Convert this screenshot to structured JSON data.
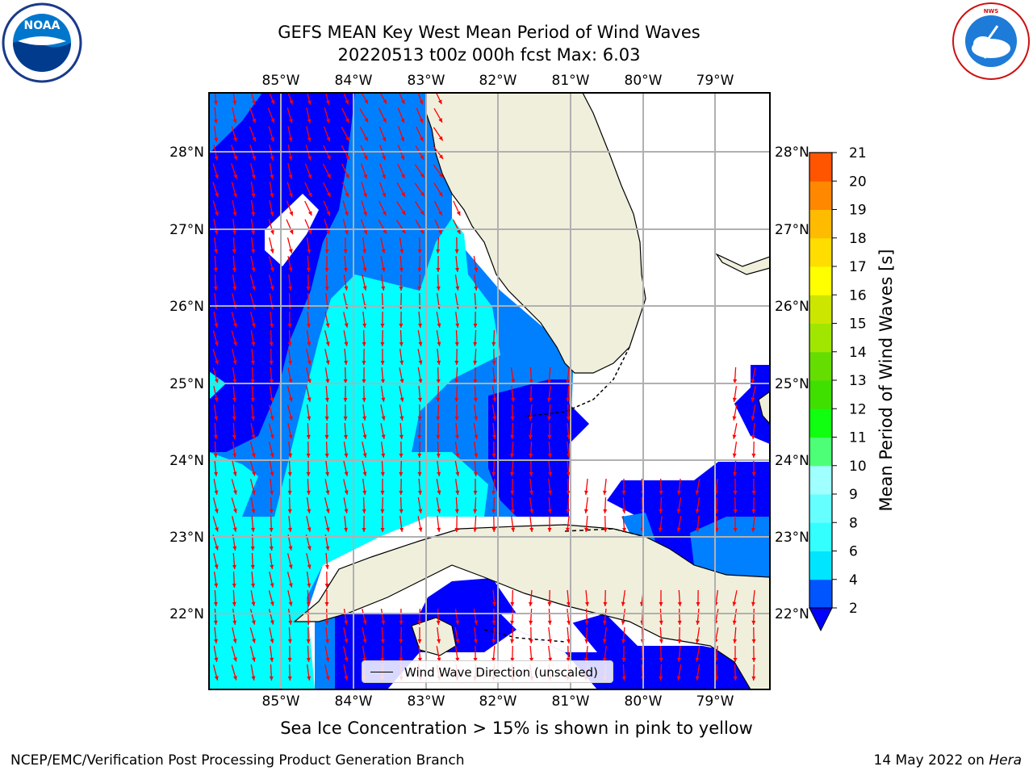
{
  "title_line1": "GEFS MEAN Key West Mean Period of Wind Waves",
  "title_line2": "20220513 t00z 000h fcst   Max: 6.03",
  "noaa_logo_text": "NOAA",
  "nws_logo_text": "NATIONAL WEATHER SERVICE",
  "longitude_labels": [
    "85°W",
    "84°W",
    "83°W",
    "82°W",
    "81°W",
    "80°W",
    "79°W"
  ],
  "latitude_labels": [
    "28°N",
    "27°N",
    "26°N",
    "25°N",
    "24°N",
    "23°N",
    "22°N"
  ],
  "colorbar": {
    "title": "Mean Period of Wind Waves [s]",
    "ticks": [
      "2",
      "4",
      "6",
      "8",
      "9",
      "10",
      "11",
      "12",
      "13",
      "14",
      "15",
      "16",
      "17",
      "18",
      "19",
      "20",
      "21"
    ],
    "colors": [
      "#0055ff",
      "#00e5ff",
      "#33ffff",
      "#66ffff",
      "#a0ffff",
      "#4dff77",
      "#10ff10",
      "#3fdf00",
      "#66dd00",
      "#a0e600",
      "#cce600",
      "#ffff00",
      "#ffdd00",
      "#ffbb00",
      "#ff8800",
      "#ff5500",
      "#ff2200",
      "#ff0000"
    ],
    "under_color": "#0000ff"
  },
  "legend": {
    "label": "Wind Wave Direction (unscaled)"
  },
  "subtitle": "Sea Ice Concentration > 15% is shown in pink to yellow",
  "footer_left": "NCEP/EMC/Verification Post Processing Product Generation Branch",
  "footer_right": {
    "date": "14 May 2022 on",
    "host": "Hera"
  },
  "field_colors": {
    "lt2": "#0000ff",
    "2_4": "#0080ff",
    "4_6": "#00ffff",
    "land": "#efefdc"
  },
  "arrow_color": "#ff0000"
}
